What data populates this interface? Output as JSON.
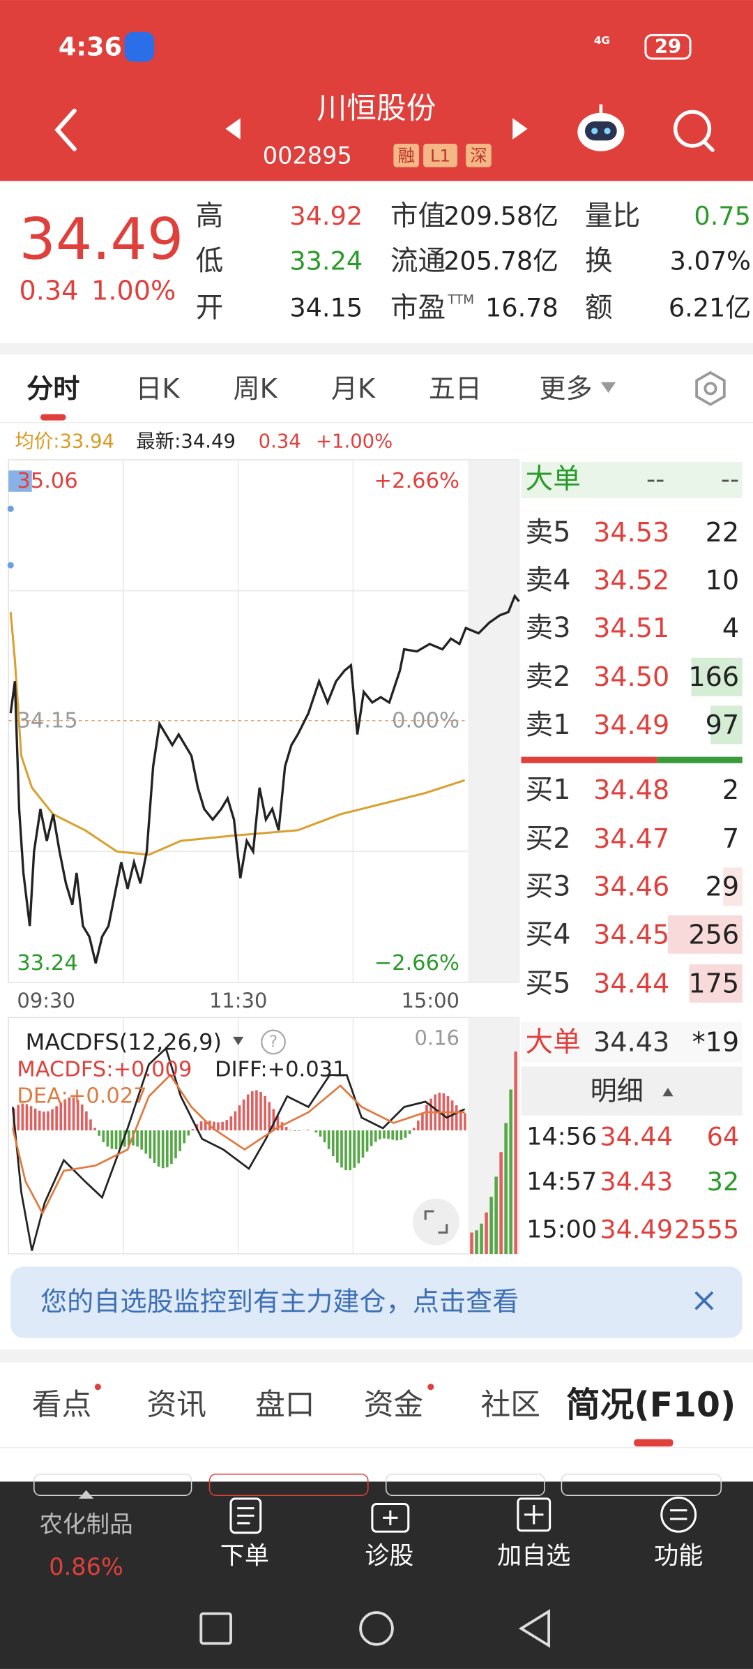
{
  "status": {
    "time": "4:36",
    "network": "4G",
    "battery": "29"
  },
  "header": {
    "title": "川恒股份",
    "code": "002895",
    "tags": [
      "融",
      "L1",
      "深"
    ]
  },
  "quote": {
    "price": "34.49",
    "change": "0.34",
    "change_pct": "1.00%",
    "stats": [
      [
        {
          "label": "高",
          "value": "34.92",
          "tone": "up"
        },
        {
          "label": "市值",
          "value": "209.58亿",
          "tone": "flat"
        },
        {
          "label": "量比",
          "value": "0.75",
          "tone": "down"
        }
      ],
      [
        {
          "label": "低",
          "value": "33.24",
          "tone": "down"
        },
        {
          "label": "流通",
          "value": "205.78亿",
          "tone": "flat"
        },
        {
          "label": "换",
          "value": "3.07%",
          "tone": "flat"
        }
      ],
      [
        {
          "label": "开",
          "value": "34.15",
          "tone": "flat"
        },
        {
          "label": "市盈",
          "sup": "TTM",
          "value": "16.78",
          "tone": "flat"
        },
        {
          "label": "额",
          "value": "6.21亿",
          "tone": "flat"
        }
      ]
    ]
  },
  "tabs": [
    "分时",
    "日K",
    "周K",
    "月K",
    "五日",
    "更多"
  ],
  "chart": {
    "avg_label": "均价:33.94",
    "latest_label": "最新:34.49",
    "change": "0.34",
    "change_pct": "+1.00%",
    "y_high": "35.06",
    "y_mid": "34.15",
    "y_low": "33.24",
    "pct_high": "+2.66%",
    "pct_mid": "0.00%",
    "pct_low": "−2.66%",
    "times": [
      "09:30",
      "11:30",
      "15:00"
    ]
  },
  "macd": {
    "title": "MACDFS(12,26,9)",
    "help": "?",
    "max": "0.16",
    "macdfs": "MACDFS:+0.009",
    "diff": "DIFF:+0.031",
    "dea": "DEA:+0.027"
  },
  "order_book": {
    "title": "大单",
    "dash1": "--",
    "dash2": "--",
    "sells": [
      {
        "label": "卖5",
        "price": "34.53",
        "volume": "22"
      },
      {
        "label": "卖4",
        "price": "34.52",
        "volume": "10"
      },
      {
        "label": "卖3",
        "price": "34.51",
        "volume": "4"
      },
      {
        "label": "卖2",
        "price": "34.50",
        "volume": "166"
      },
      {
        "label": "卖1",
        "price": "34.49",
        "volume": "97"
      }
    ],
    "buys": [
      {
        "label": "买1",
        "price": "34.48",
        "volume": "2"
      },
      {
        "label": "买2",
        "price": "34.47",
        "volume": "7"
      },
      {
        "label": "买3",
        "price": "34.46",
        "volume": "29"
      },
      {
        "label": "买4",
        "price": "34.45",
        "volume": "256"
      },
      {
        "label": "买5",
        "price": "34.44",
        "volume": "175"
      }
    ],
    "big_order": {
      "label": "大单",
      "price": "34.43",
      "volume": "*19"
    },
    "detail_title": "明细",
    "trades": [
      {
        "time": "14:56",
        "price": "34.44",
        "volume": "64",
        "tone": "up"
      },
      {
        "time": "14:57",
        "price": "34.43",
        "volume": "32",
        "tone": "down"
      },
      {
        "time": "15:00",
        "price": "34.49",
        "volume": "2555",
        "tone": "up"
      }
    ]
  },
  "notice": "您的自选股监控到有主力建仓，点击查看",
  "section_tabs": [
    "看点",
    "资讯",
    "盘口",
    "资金",
    "社区",
    "简况(F10)"
  ],
  "toolbar": {
    "sector": "农化制品",
    "sector_change": "0.86%",
    "items": [
      "下单",
      "诊股",
      "加自选",
      "功能"
    ]
  }
}
